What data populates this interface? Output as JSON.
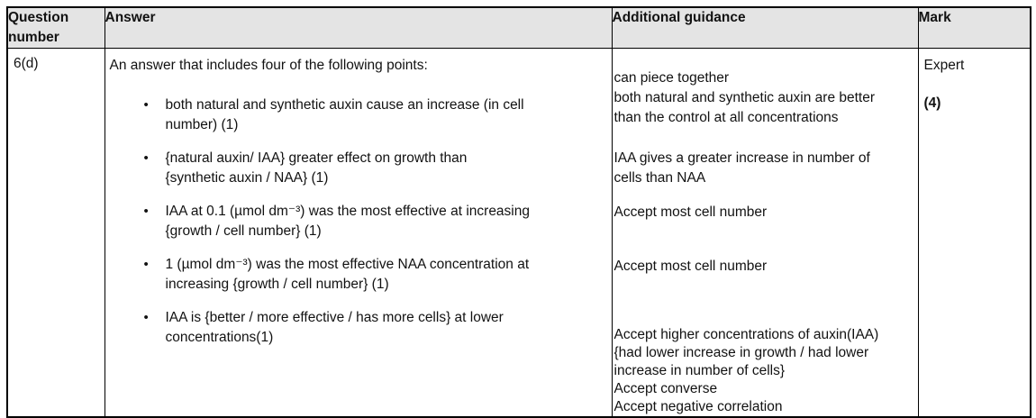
{
  "table": {
    "header": {
      "question": "Question number",
      "answer": "Answer",
      "guidance": "Additional guidance",
      "mark": "Mark"
    },
    "row": {
      "question_number": "6(d)",
      "answer": {
        "intro": "An answer that includes four of the following points:",
        "bullets": [
          {
            "lines": [
              "both natural and synthetic auxin cause an increase (in cell",
              "number) (1)"
            ]
          },
          {
            "lines": [
              "{natural auxin/ IAA} greater effect on growth than",
              "{synthetic auxin / NAA} (1)"
            ]
          },
          {
            "lines": [
              "IAA at 0.1 (µmol dm⁻³) was the most effective at increasing",
              "{growth / cell number} (1)"
            ]
          },
          {
            "lines": [
              "1 (µmol dm⁻³) was the most effective NAA concentration at",
              "increasing {growth / cell number} (1)"
            ]
          },
          {
            "lines": [
              "IAA is {better / more effective / has more cells} at lower",
              "concentrations(1)"
            ]
          }
        ]
      },
      "guidance": {
        "blocks": [
          {
            "lines": [
              "can piece together",
              "both natural and synthetic auxin are better",
              "than the control at all concentrations"
            ]
          },
          {
            "lines": [
              "IAA gives a greater increase in number of",
              "cells than NAA"
            ]
          },
          {
            "lines": [
              "Accept most cell number"
            ]
          },
          {
            "lines": [
              "Accept most cell number"
            ]
          },
          {
            "lines": [
              "Accept higher concentrations of auxin(IAA)",
              "{had lower increase in growth / had lower",
              "increase in number of cells}",
              "Accept converse",
              "Accept negative correlation"
            ]
          }
        ]
      },
      "mark": {
        "level": "Expert",
        "value": "(4)"
      }
    }
  },
  "colors": {
    "header_bg": "#e4e4e4",
    "border": "#000000",
    "text": "#121212",
    "page_bg": "#ffffff"
  }
}
